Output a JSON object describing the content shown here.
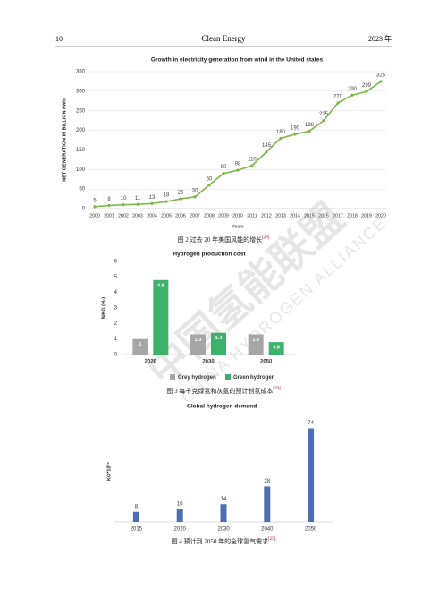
{
  "header": {
    "page": "10",
    "journal": "Clean Energy",
    "year": "2023 年"
  },
  "watermark": {
    "cn": "中国氢能联盟",
    "en": "CHINA HYDROGEN ALLIANCE"
  },
  "captions": [
    {
      "text": "图 2  过去 20 年美国风能的增长",
      "ref": "[28]"
    },
    {
      "text": "图 3  每千克绿氢和灰氢的预计制氢成本",
      "ref": "[29]"
    },
    {
      "text": "图 4  预计到 2050 年的全球氢气需求",
      "ref": "[29]"
    }
  ],
  "chart_data": [
    {
      "type": "line",
      "title": "Growth in electricity generation from wind in the United states",
      "y_label": "NET GENERATION IN BILLION kWh",
      "x_label": "Years",
      "x": [
        2000,
        2001,
        2002,
        2003,
        2004,
        2005,
        2006,
        2007,
        2008,
        2009,
        2010,
        2011,
        2012,
        2013,
        2014,
        2015,
        2016,
        2017,
        2018,
        2019,
        2020
      ],
      "xlim": [
        2000,
        2020
      ],
      "series": [
        {
          "name": "Wind",
          "color": "#7cb647",
          "values": [
            5,
            8,
            10,
            11,
            13,
            18,
            25,
            30,
            60,
            90,
            98,
            110,
            145,
            180,
            190,
            198,
            225,
            270,
            290,
            299,
            325
          ]
        }
      ],
      "ylim": [
        0,
        350
      ],
      "yticks": [
        0,
        50,
        100,
        150,
        200,
        250,
        300,
        350
      ],
      "grid": true
    },
    {
      "type": "bar",
      "title": "Hydrogen production cost",
      "y_label": "$/KG (H₂)",
      "categories": [
        "2020",
        "2030",
        "2050"
      ],
      "series": [
        {
          "name": "Grey hydrogen",
          "color": "#a6a6a6",
          "values": [
            1,
            1.3,
            1.3
          ]
        },
        {
          "name": "Green hydrogen",
          "color": "#3cb26a",
          "values": [
            4.8,
            1.4,
            0.8
          ]
        }
      ],
      "ylim": [
        0,
        6
      ],
      "yticks": [
        0,
        1,
        2,
        3,
        4,
        5,
        6
      ],
      "grid": false,
      "legend": "bottom"
    },
    {
      "type": "bar",
      "title": "Global hydrogen demand",
      "y_label": "KG*10¹⁵",
      "categories": [
        "2015",
        "2020",
        "2030",
        "2040",
        "2050"
      ],
      "series": [
        {
          "name": "Demand",
          "color": "#4a6fb5",
          "values": [
            8,
            10,
            14,
            28,
            74
          ]
        }
      ],
      "ylim": [
        0,
        80
      ],
      "grid": false
    }
  ]
}
